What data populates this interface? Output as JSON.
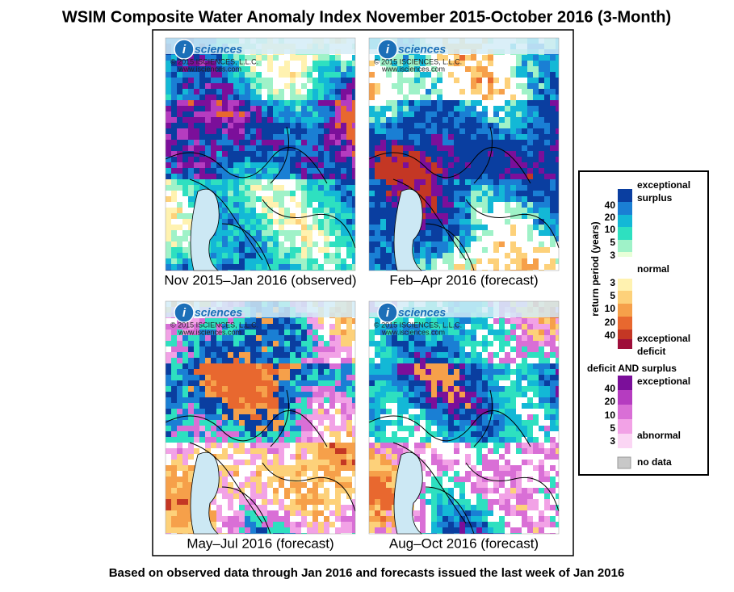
{
  "title": "WSIM Composite Water Anomaly Index November 2015-October 2016 (3-Month)",
  "logo": {
    "letter": "i",
    "word": "sciences",
    "copyright": "© 2015 ISCIENCES, L.L.C.",
    "url": "www.isciences.com"
  },
  "panels": [
    {
      "caption": "Nov 2015–Jan 2016 (observed)"
    },
    {
      "caption": "Feb–Apr 2016 (forecast)"
    },
    {
      "caption": "May–Jul 2016 (forecast)"
    },
    {
      "caption": "Aug–Oct 2016 (forecast)"
    }
  ],
  "legend": {
    "axis_label": "return period (years)",
    "surplus_label": [
      "exceptional",
      "surplus"
    ],
    "surplus_ticks": [
      40,
      20,
      10,
      5,
      3
    ],
    "normal_label": "normal",
    "deficit_ticks": [
      3,
      5,
      10,
      20,
      40
    ],
    "deficit_label": [
      "exceptional",
      "deficit"
    ],
    "both_title": "deficit AND surplus",
    "both_top": "exceptional",
    "both_ticks": [
      40,
      20,
      10,
      5,
      3
    ],
    "both_bottom": "abnormal",
    "no_data": "no data"
  },
  "footer": "Based on observed data through Jan 2016 and forecasts issued the last week of Jan 2016"
}
